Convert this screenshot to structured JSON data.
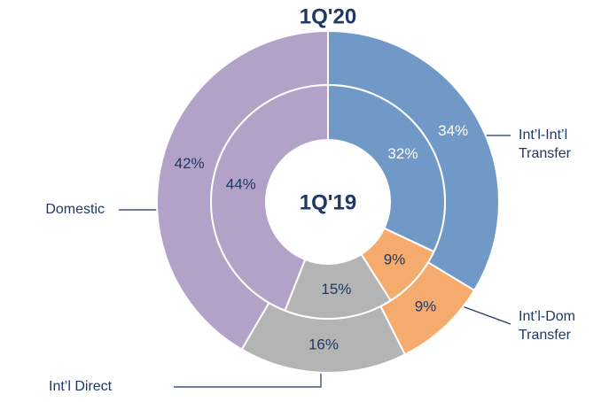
{
  "chart_data": {
    "type": "nested-donut",
    "categories": [
      "Int’l-Int’l Transfer",
      "Int’l-Dom Transfer",
      "Int’l Direct",
      "Domestic"
    ],
    "colors": [
      "#7099c8",
      "#f5ab6d",
      "#b4b4b4",
      "#b3a2c7"
    ],
    "series": [
      {
        "name": "1Q'20",
        "values": [
          34,
          9,
          16,
          42
        ],
        "value_labels": [
          "34%",
          "9%",
          "16%",
          "42%"
        ]
      },
      {
        "name": "1Q'19",
        "values": [
          32,
          9,
          15,
          44
        ],
        "value_labels": [
          "32%",
          "9%",
          "15%",
          "44%"
        ]
      }
    ]
  }
}
